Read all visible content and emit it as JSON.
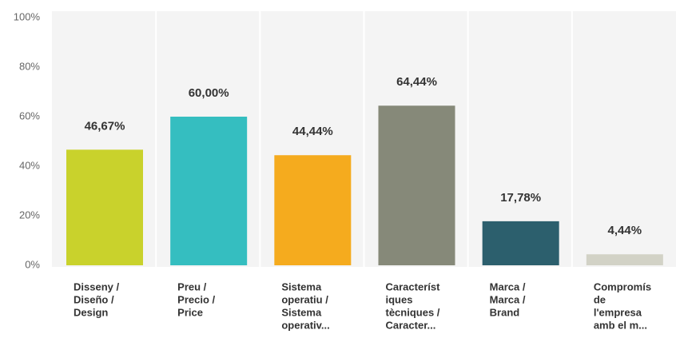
{
  "chart_data": {
    "type": "bar",
    "categories": [
      [
        "Disseny /",
        "Diseño /",
        "Design"
      ],
      [
        "Preu /",
        "Precio /",
        "Price"
      ],
      [
        "Sistema",
        "operatiu /",
        "Sistema",
        "operativ..."
      ],
      [
        "Característ",
        "iques",
        "tècniques /",
        "Caracter..."
      ],
      [
        "Marca /",
        "Marca /",
        "Brand"
      ],
      [
        "Compromís",
        "de",
        "l'empresa",
        "amb el m..."
      ]
    ],
    "values": [
      46.67,
      60,
      44.44,
      64.44,
      17.78,
      4.44
    ],
    "value_labels": [
      "46,67%",
      "60,00%",
      "44,44%",
      "64,44%",
      "17,78%",
      "4,44%"
    ],
    "colors": [
      "#c9d22c",
      "#35bec0",
      "#f5ab1e",
      "#868979",
      "#2c5f6d",
      "#d2d2c6"
    ],
    "ylim": [
      0,
      100
    ],
    "yticks": [
      {
        "value": 0,
        "label": "0%"
      },
      {
        "value": 20,
        "label": "20%"
      },
      {
        "value": 40,
        "label": "40%"
      },
      {
        "value": 60,
        "label": "60%"
      },
      {
        "value": 80,
        "label": "80%"
      },
      {
        "value": 100,
        "label": "100%"
      }
    ]
  }
}
